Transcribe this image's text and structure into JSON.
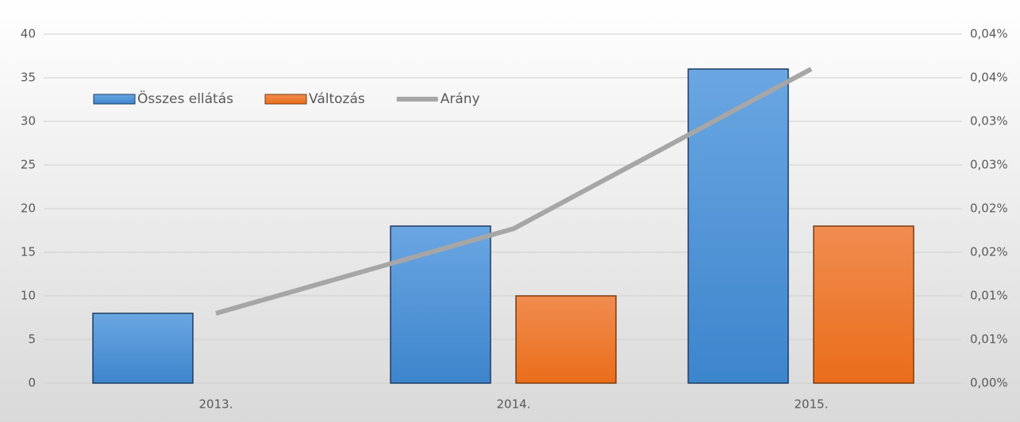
{
  "chart_data": {
    "type": "bar",
    "categories": [
      "2013.",
      "2014.",
      "2015."
    ],
    "series": [
      {
        "name": "Összes ellátás",
        "color": "#4a90d9",
        "values": [
          8,
          18,
          36
        ]
      },
      {
        "name": "Változás",
        "color": "#f07b2a",
        "values": [
          null,
          10,
          18
        ]
      },
      {
        "name": "Arány",
        "type": "line",
        "axis": "y2",
        "color": "#a6a6a6",
        "values": [
          0.008,
          0.0177,
          0.036
        ]
      }
    ],
    "ylim": [
      0,
      40
    ],
    "yticks": [
      0,
      5,
      10,
      15,
      20,
      25,
      30,
      35,
      40
    ],
    "y2lim": [
      0,
      0.04
    ],
    "y2ticks": [
      {
        "value": 0,
        "label": "0,00%"
      },
      {
        "value": 0.005,
        "label": "0,01%"
      },
      {
        "value": 0.01,
        "label": "0,01%"
      },
      {
        "value": 0.015,
        "label": "0,02%"
      },
      {
        "value": 0.02,
        "label": "0,02%"
      },
      {
        "value": 0.025,
        "label": "0,03%"
      },
      {
        "value": 0.03,
        "label": "0,03%"
      },
      {
        "value": 0.035,
        "label": "0,04%"
      },
      {
        "value": 0.04,
        "label": "0,04%"
      }
    ],
    "grid": true,
    "legend": "top-left"
  }
}
